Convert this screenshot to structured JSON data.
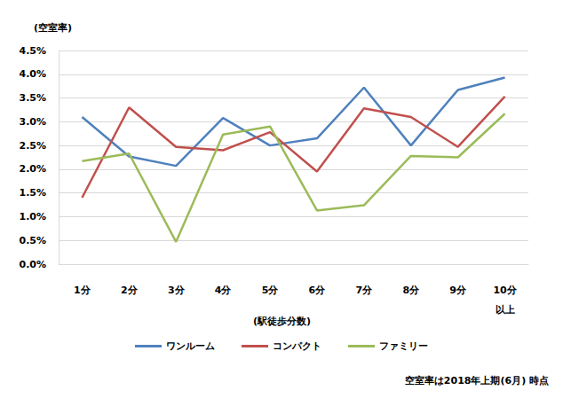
{
  "chart_data": {
    "type": "line",
    "ylabel": "(空室率)",
    "xlabel": "(駅徒歩分数)",
    "annotations": [
      "空室率は2018年上期(6月) 時点"
    ],
    "categories": [
      "1分",
      "2分",
      "3分",
      "4分",
      "5分",
      "6分",
      "7分",
      "8分",
      "9分",
      "10分\n以上"
    ],
    "series": [
      {
        "name": "ワンルーム",
        "color": "#4f81bd",
        "values": [
          3.1,
          2.27,
          2.07,
          3.08,
          2.5,
          2.65,
          3.72,
          2.5,
          3.67,
          3.93
        ]
      },
      {
        "name": "コンパクト",
        "color": "#c0504d",
        "values": [
          1.4,
          3.3,
          2.47,
          2.4,
          2.78,
          1.95,
          3.28,
          3.1,
          2.47,
          3.53
        ]
      },
      {
        "name": "ファミリー",
        "color": "#9bbb59",
        "values": [
          2.17,
          2.33,
          0.47,
          2.73,
          2.9,
          1.13,
          1.24,
          2.28,
          2.25,
          3.17
        ]
      }
    ],
    "ylim": [
      0,
      4.5
    ],
    "yticks": [
      {
        "value": 0,
        "label": "0.0%"
      },
      {
        "value": 0.5,
        "label": "0.5%"
      },
      {
        "value": 1,
        "label": "1.0%"
      },
      {
        "value": 1.5,
        "label": "1.5%"
      },
      {
        "value": 2,
        "label": "2.0%"
      },
      {
        "value": 2.5,
        "label": "2.5%"
      },
      {
        "value": 3,
        "label": "3.0%"
      },
      {
        "value": 3.5,
        "label": "3.5%"
      },
      {
        "value": 4,
        "label": "4.0%"
      },
      {
        "value": 4.5,
        "label": "4.5%"
      }
    ],
    "grid": true,
    "legend": "bottom"
  }
}
